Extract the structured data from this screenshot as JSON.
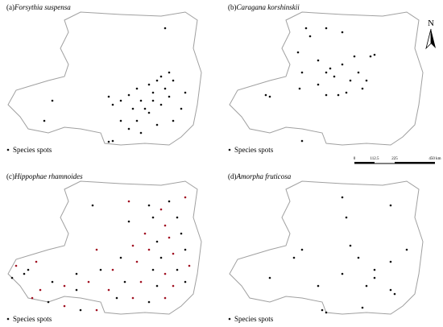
{
  "panels": [
    {
      "label": "(a)",
      "species": "Forsythia suspensa",
      "legend": "Species spots"
    },
    {
      "label": "(b)",
      "species": "Caragana korshinskii",
      "legend": "Species spots"
    },
    {
      "label": "(c)",
      "species": "Hippophae rhamnoides",
      "legend": "Species spots"
    },
    {
      "label": "(d)",
      "species": "Amorpha fruticosa",
      "legend": "Species spots"
    }
  ],
  "scale_bar": {
    "ticks": [
      "0",
      "112.5",
      "225",
      "450 km"
    ]
  },
  "north": "N"
}
